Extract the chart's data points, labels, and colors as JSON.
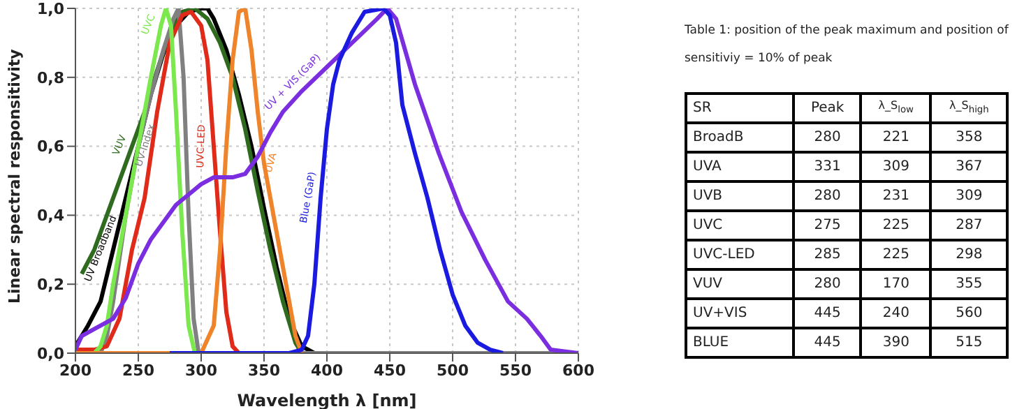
{
  "chart_data": [
    {
      "type": "line",
      "xlabel": "Wavelength λ [nm]",
      "ylabel": "Linear spectral responsitivity",
      "xlim": [
        200,
        600
      ],
      "ylim": [
        0,
        1
      ],
      "xticks": [
        200,
        250,
        300,
        350,
        400,
        450,
        500,
        550,
        600
      ],
      "yticks": [
        {
          "value": 0,
          "label": "0,0"
        },
        {
          "value": 0.2,
          "label": "0,2"
        },
        {
          "value": 0.4,
          "label": "0,4"
        },
        {
          "value": 0.6,
          "label": "0,6"
        },
        {
          "value": 0.8,
          "label": "0,8"
        },
        {
          "value": 1,
          "label": "1,0"
        }
      ],
      "grid": true,
      "marker": "none",
      "line_style": "solid",
      "series": [
        {
          "name": "UV Broadband",
          "color": "#000000",
          "x": [
            200,
            210,
            220,
            230,
            240,
            250,
            260,
            270,
            280,
            290,
            300,
            305,
            310,
            320,
            330,
            340,
            350,
            360,
            370,
            380,
            390
          ],
          "values": [
            0.02,
            0.08,
            0.15,
            0.3,
            0.45,
            0.6,
            0.75,
            0.87,
            0.95,
            0.99,
            1,
            1,
            0.97,
            0.88,
            0.75,
            0.6,
            0.42,
            0.25,
            0.1,
            0.02,
            0
          ]
        },
        {
          "name": "VUV",
          "color": "#2e6b1f",
          "x": [
            205,
            215,
            225,
            235,
            245,
            255,
            265,
            275,
            285,
            295,
            305,
            315,
            325,
            335,
            345,
            355,
            365,
            375,
            380
          ],
          "values": [
            0.23,
            0.3,
            0.4,
            0.5,
            0.6,
            0.7,
            0.82,
            0.93,
            0.99,
            1,
            0.97,
            0.9,
            0.8,
            0.65,
            0.47,
            0.3,
            0.15,
            0.03,
            0
          ]
        },
        {
          "name": "UV-Index",
          "color": "#808080",
          "x": [
            200,
            220,
            225,
            230,
            240,
            250,
            260,
            270,
            278,
            282,
            286,
            290,
            294,
            298,
            400,
            600
          ],
          "values": [
            0,
            0,
            0.05,
            0.15,
            0.4,
            0.6,
            0.75,
            0.88,
            0.97,
            1,
            0.8,
            0.4,
            0.1,
            0,
            0,
            0
          ]
        },
        {
          "name": "UVC-LED",
          "color": "#e02a1a",
          "x": [
            200,
            215,
            225,
            235,
            245,
            255,
            265,
            275,
            285,
            292,
            300,
            305,
            310,
            315,
            320,
            325,
            330
          ],
          "values": [
            0.01,
            0.01,
            0.02,
            0.1,
            0.3,
            0.45,
            0.7,
            0.9,
            0.98,
            0.99,
            0.95,
            0.85,
            0.6,
            0.35,
            0.12,
            0.02,
            0
          ]
        },
        {
          "name": "UVC",
          "color": "#7be84d",
          "x": [
            215,
            220,
            225,
            230,
            240,
            250,
            260,
            268,
            272,
            276,
            280,
            285,
            290,
            295
          ],
          "values": [
            0,
            0.02,
            0.08,
            0.2,
            0.4,
            0.6,
            0.8,
            0.95,
            1,
            0.95,
            0.7,
            0.35,
            0.08,
            0
          ]
        },
        {
          "name": "UVA",
          "color": "#f0842a",
          "x": [
            200,
            300,
            310,
            315,
            320,
            325,
            330,
            335,
            340,
            345,
            350,
            360,
            370,
            375,
            380
          ],
          "values": [
            0,
            0,
            0.08,
            0.3,
            0.6,
            0.85,
            0.99,
            1,
            0.88,
            0.7,
            0.55,
            0.35,
            0.15,
            0.05,
            0
          ]
        },
        {
          "name": "UV + VIS (GaP)",
          "color": "#7a2ee0",
          "x": [
            200,
            205,
            215,
            230,
            240,
            250,
            260,
            270,
            280,
            290,
            300,
            310,
            325,
            335,
            345,
            355,
            365,
            380,
            400,
            420,
            440,
            448,
            455,
            470,
            489,
            507,
            526,
            544,
            559,
            570,
            578,
            600
          ],
          "values": [
            0.01,
            0.05,
            0.07,
            0.1,
            0.16,
            0.26,
            0.33,
            0.38,
            0.43,
            0.46,
            0.49,
            0.51,
            0.51,
            0.52,
            0.57,
            0.64,
            0.7,
            0.76,
            0.83,
            0.9,
            0.97,
            1,
            0.97,
            0.78,
            0.58,
            0.41,
            0.27,
            0.15,
            0.1,
            0.05,
            0.01,
            0
          ]
        },
        {
          "name": "Blue (GaP)",
          "color": "#1a1ae0",
          "x": [
            275,
            370,
            380,
            385,
            390,
            395,
            400,
            405,
            410,
            420,
            430,
            445,
            450,
            455,
            460,
            470,
            480,
            490,
            500,
            510,
            520,
            530,
            540
          ],
          "values": [
            0,
            0,
            0.01,
            0.05,
            0.2,
            0.45,
            0.65,
            0.78,
            0.85,
            0.93,
            0.99,
            1,
            0.98,
            0.9,
            0.72,
            0.58,
            0.45,
            0.3,
            0.17,
            0.08,
            0.03,
            0.01,
            0
          ]
        }
      ]
    },
    {
      "type": "heatmap",
      "title": "Table 1: position of the peak maximum and position of sensitiviy = 10% of peak",
      "ylabel": "SR",
      "data_labels": true,
      "categories": [
        "Peak",
        "λ_S$_{low}$",
        "λ_S$_{high}$"
      ],
      "y_categories": [
        "BroadB",
        "UVA",
        "UVB",
        "UVC",
        "UVC-LED",
        "VUV",
        "UV+VIS",
        "BLUE"
      ],
      "cells": [
        [
          280,
          221,
          358
        ],
        [
          331,
          309,
          367
        ],
        [
          280,
          231,
          309
        ],
        [
          275,
          225,
          287
        ],
        [
          285,
          225,
          298
        ],
        [
          280,
          170,
          355
        ],
        [
          445,
          240,
          560
        ],
        [
          445,
          390,
          515
        ]
      ]
    }
  ]
}
